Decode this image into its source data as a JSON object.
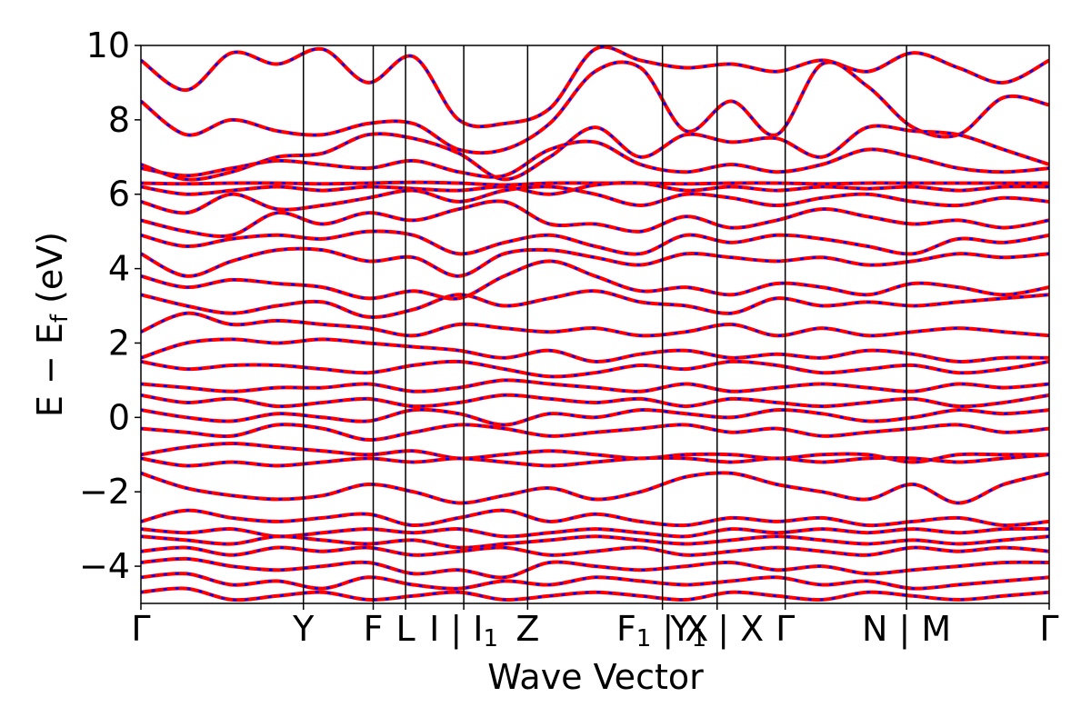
{
  "chart_data": {
    "type": "line",
    "title": "",
    "xlabel": "Wave Vector",
    "ylabel": "E − E",
    "ylabel_sub": "f",
    "ylabel_unit": " (eV)",
    "ylim": [
      -5,
      10
    ],
    "xlim": [
      0,
      6.4
    ],
    "y_ticks": [
      10,
      8,
      6,
      4,
      2,
      0,
      -2,
      -4
    ],
    "y_tick_labels": [
      "10",
      "8",
      "6",
      "4",
      "2",
      "0",
      "−2",
      "−4"
    ],
    "high_symmetry_points": [
      {
        "x": 0.0,
        "label": "Γ"
      },
      {
        "x": 1.145,
        "label": "Y"
      },
      {
        "x": 1.637,
        "label": "F"
      },
      {
        "x": 1.865,
        "label": "L"
      },
      {
        "x": 2.275,
        "label": "I | I",
        "sub": "1"
      },
      {
        "x": 2.725,
        "label": "Z"
      },
      {
        "x": 3.675,
        "label": "F",
        "sub": "1",
        "tail": " | X"
      },
      {
        "x": 4.06,
        "label": "Y",
        "sub": "1",
        "tail": " | X"
      },
      {
        "x": 4.54,
        "label": "Γ"
      },
      {
        "x": 5.395,
        "label": "N | M"
      },
      {
        "x": 6.4,
        "label": "Γ"
      }
    ],
    "grid": false,
    "legend": "none",
    "series": [
      {
        "style": "solid",
        "color": "#ff0000",
        "role": "bands-a"
      },
      {
        "style": "dotted",
        "color": "#0000ff",
        "role": "bands-b"
      }
    ],
    "bands": [
      [
        9.6,
        8.8,
        9.8,
        9.5,
        9.9,
        9.0,
        9.7,
        8.0,
        7.9,
        8.3,
        9.9,
        9.6,
        9.4,
        9.5,
        9.3,
        9.6,
        9.3,
        9.8,
        9.4,
        9.0,
        9.6
      ],
      [
        8.5,
        7.6,
        8.0,
        7.7,
        7.6,
        7.9,
        7.9,
        7.2,
        7.2,
        7.9,
        9.3,
        9.4,
        7.7,
        8.5,
        7.6,
        9.5,
        8.9,
        7.8,
        7.6,
        8.6,
        8.4
      ],
      [
        6.8,
        6.4,
        6.6,
        7.0,
        7.1,
        7.6,
        7.5,
        7.1,
        6.4,
        7.0,
        7.8,
        7.0,
        7.6,
        7.4,
        7.5,
        7.0,
        7.8,
        7.7,
        7.6,
        7.2,
        6.8
      ],
      [
        6.7,
        6.5,
        6.7,
        6.9,
        6.8,
        6.7,
        6.9,
        6.6,
        6.5,
        7.2,
        7.4,
        6.8,
        6.6,
        6.8,
        6.6,
        6.8,
        7.2,
        7.0,
        6.7,
        6.6,
        6.7
      ],
      [
        6.3,
        6.28,
        6.3,
        6.3,
        6.28,
        6.3,
        6.32,
        6.3,
        6.25,
        6.3,
        6.3,
        6.3,
        6.28,
        6.3,
        6.3,
        6.28,
        6.3,
        6.3,
        6.3,
        6.3,
        6.3
      ],
      [
        6.2,
        6.0,
        6.1,
        6.2,
        6.1,
        6.2,
        6.15,
        6.1,
        6.2,
        6.0,
        6.25,
        6.3,
        6.1,
        6.2,
        6.1,
        6.2,
        6.15,
        6.2,
        6.1,
        6.2,
        6.2
      ],
      [
        5.8,
        5.5,
        6.0,
        5.6,
        5.7,
        5.9,
        6.1,
        5.8,
        6.1,
        6.2,
        6.0,
        5.7,
        6.0,
        5.9,
        5.7,
        5.9,
        6.0,
        5.8,
        5.7,
        5.9,
        5.8
      ],
      [
        5.3,
        5.0,
        4.9,
        5.5,
        5.2,
        5.5,
        5.3,
        5.6,
        5.8,
        5.2,
        5.2,
        5.0,
        5.4,
        5.1,
        5.3,
        5.6,
        5.4,
        5.2,
        5.3,
        5.1,
        5.3
      ],
      [
        4.9,
        4.6,
        4.8,
        4.9,
        4.8,
        5.0,
        4.9,
        4.4,
        4.7,
        4.9,
        4.6,
        4.4,
        4.9,
        4.7,
        4.9,
        4.8,
        4.6,
        4.4,
        4.8,
        4.7,
        4.9
      ],
      [
        4.4,
        3.8,
        4.2,
        4.5,
        4.5,
        4.2,
        4.3,
        3.8,
        4.4,
        4.5,
        4.3,
        4.1,
        4.4,
        4.3,
        4.2,
        4.3,
        4.1,
        4.2,
        4.4,
        4.3,
        4.4
      ],
      [
        3.8,
        3.5,
        3.7,
        3.6,
        3.5,
        3.2,
        3.4,
        3.2,
        3.8,
        4.2,
        3.8,
        3.4,
        3.5,
        3.3,
        3.6,
        3.5,
        3.3,
        3.6,
        3.5,
        3.3,
        3.5
      ],
      [
        3.3,
        3.0,
        2.8,
        3.0,
        3.1,
        2.7,
        2.9,
        3.3,
        3.0,
        3.2,
        3.4,
        3.1,
        3.0,
        2.8,
        3.2,
        3.0,
        3.1,
        3.0,
        3.1,
        3.2,
        3.3
      ],
      [
        2.3,
        2.8,
        2.5,
        2.6,
        2.5,
        2.4,
        2.2,
        2.5,
        2.4,
        2.3,
        2.4,
        2.2,
        2.3,
        2.5,
        2.2,
        2.4,
        2.2,
        2.3,
        2.4,
        2.3,
        2.2
      ],
      [
        1.6,
        2.0,
        2.1,
        2.0,
        2.1,
        2.0,
        1.9,
        1.8,
        1.6,
        1.8,
        1.5,
        1.7,
        1.8,
        1.6,
        1.7,
        1.6,
        1.8,
        1.7,
        1.5,
        1.6,
        1.6
      ],
      [
        1.5,
        1.3,
        1.4,
        1.4,
        1.3,
        1.2,
        1.4,
        1.5,
        1.3,
        1.1,
        1.2,
        1.4,
        1.3,
        1.5,
        1.4,
        1.2,
        1.3,
        1.4,
        1.2,
        1.3,
        1.5
      ],
      [
        0.9,
        0.8,
        0.7,
        0.8,
        0.8,
        0.9,
        0.7,
        0.8,
        1.0,
        0.9,
        0.8,
        0.7,
        0.9,
        0.7,
        0.8,
        0.9,
        0.8,
        0.7,
        0.9,
        0.8,
        0.9
      ],
      [
        0.6,
        0.4,
        0.5,
        0.3,
        0.4,
        0.5,
        0.3,
        0.4,
        0.6,
        0.5,
        0.4,
        0.5,
        0.3,
        0.5,
        0.4,
        0.3,
        0.4,
        0.5,
        0.3,
        0.4,
        0.6
      ],
      [
        0.2,
        0.0,
        -0.1,
        0.1,
        0.0,
        -0.1,
        0.2,
        0.1,
        -0.2,
        0.1,
        0.0,
        0.2,
        0.1,
        0.0,
        0.2,
        0.1,
        -0.1,
        0.0,
        0.2,
        0.1,
        0.2
      ],
      [
        -0.3,
        -0.4,
        -0.5,
        -0.2,
        -0.3,
        -0.6,
        -0.4,
        -0.2,
        -0.3,
        -0.5,
        -0.4,
        -0.3,
        -0.2,
        -0.4,
        -0.3,
        -0.5,
        -0.4,
        -0.3,
        -0.2,
        -0.4,
        -0.3
      ],
      [
        -1.0,
        -0.8,
        -0.7,
        -0.8,
        -0.9,
        -1.0,
        -0.9,
        -1.1,
        -1.0,
        -0.9,
        -1.0,
        -1.1,
        -1.0,
        -1.0,
        -1.1,
        -1.0,
        -1.0,
        -1.2,
        -1.0,
        -1.0,
        -1.0
      ],
      [
        -1.1,
        -1.3,
        -1.2,
        -1.3,
        -1.2,
        -1.1,
        -1.2,
        -1.1,
        -1.2,
        -1.3,
        -1.2,
        -1.1,
        -1.1,
        -1.2,
        -1.1,
        -1.2,
        -1.1,
        -1.1,
        -1.2,
        -1.1,
        -1.0
      ],
      [
        -1.5,
        -1.9,
        -2.1,
        -2.2,
        -2.1,
        -1.8,
        -2.0,
        -2.3,
        -2.1,
        -1.9,
        -2.2,
        -2.0,
        -1.6,
        -1.5,
        -1.8,
        -2.0,
        -2.2,
        -1.8,
        -2.3,
        -1.8,
        -1.5
      ],
      [
        -2.8,
        -2.5,
        -2.7,
        -2.8,
        -2.7,
        -2.6,
        -2.9,
        -2.7,
        -2.5,
        -2.8,
        -2.6,
        -2.8,
        -2.9,
        -2.7,
        -2.8,
        -2.7,
        -2.9,
        -2.8,
        -2.7,
        -2.9,
        -2.8
      ],
      [
        -3.0,
        -3.1,
        -3.0,
        -3.2,
        -3.1,
        -3.0,
        -3.1,
        -3.0,
        -3.2,
        -3.1,
        -3.0,
        -3.1,
        -3.2,
        -3.0,
        -3.1,
        -3.0,
        -3.1,
        -3.0,
        -3.1,
        -3.0,
        -3.0
      ],
      [
        -3.2,
        -3.3,
        -3.4,
        -3.2,
        -3.3,
        -3.4,
        -3.3,
        -3.5,
        -3.4,
        -3.3,
        -3.2,
        -3.3,
        -3.4,
        -3.3,
        -3.2,
        -3.3,
        -3.4,
        -3.3,
        -3.4,
        -3.3,
        -3.2
      ],
      [
        -3.6,
        -3.5,
        -3.7,
        -3.5,
        -3.6,
        -3.5,
        -3.7,
        -3.6,
        -3.5,
        -3.7,
        -3.6,
        -3.5,
        -3.7,
        -3.6,
        -3.5,
        -3.6,
        -3.7,
        -3.5,
        -3.6,
        -3.5,
        -3.6
      ],
      [
        -3.9,
        -3.8,
        -4.0,
        -4.1,
        -4.0,
        -3.9,
        -4.2,
        -4.1,
        -4.3,
        -3.9,
        -4.0,
        -4.1,
        -4.0,
        -3.9,
        -4.1,
        -4.0,
        -4.2,
        -4.1,
        -4.0,
        -3.9,
        -3.9
      ],
      [
        -4.3,
        -4.2,
        -4.5,
        -4.4,
        -4.6,
        -4.3,
        -4.5,
        -4.6,
        -4.4,
        -4.5,
        -4.3,
        -4.4,
        -4.5,
        -4.4,
        -4.3,
        -4.5,
        -4.4,
        -4.6,
        -4.5,
        -4.4,
        -4.3
      ],
      [
        -4.7,
        -4.6,
        -4.9,
        -4.8,
        -4.7,
        -4.9,
        -4.8,
        -4.7,
        -4.9,
        -4.8,
        -4.7,
        -4.8,
        -4.9,
        -4.7,
        -4.8,
        -4.9,
        -4.7,
        -4.8,
        -4.9,
        -4.8,
        -4.7
      ]
    ]
  }
}
